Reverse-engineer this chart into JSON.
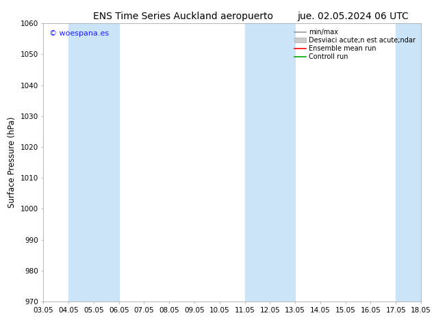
{
  "title_left": "ENS Time Series Auckland aeropuerto",
  "title_right": "jue. 02.05.2024 06 UTC",
  "ylabel": "Surface Pressure (hPa)",
  "ylim": [
    970,
    1060
  ],
  "yticks": [
    970,
    980,
    990,
    1000,
    1010,
    1020,
    1030,
    1040,
    1050,
    1060
  ],
  "x_start": 3.05,
  "x_end": 18.05,
  "xtick_labels": [
    "03.05",
    "04.05",
    "05.05",
    "06.05",
    "07.05",
    "08.05",
    "09.05",
    "10.05",
    "11.05",
    "12.05",
    "13.05",
    "14.05",
    "15.05",
    "16.05",
    "17.05",
    "18.05"
  ],
  "xtick_values": [
    3.05,
    4.05,
    5.05,
    6.05,
    7.05,
    8.05,
    9.05,
    10.05,
    11.05,
    12.05,
    13.05,
    14.05,
    15.05,
    16.05,
    17.05,
    18.05
  ],
  "shaded_bands": [
    {
      "x_start": 4.05,
      "x_end": 6.05
    },
    {
      "x_start": 11.05,
      "x_end": 13.05
    },
    {
      "x_start": 17.05,
      "x_end": 18.05
    }
  ],
  "shaded_color": "#cce4f7",
  "watermark_text": "© woespana.es",
  "watermark_color": "#1a1aff",
  "bg_color": "#ffffff",
  "plot_bg_color": "#ffffff",
  "title_fontsize": 10,
  "tick_fontsize": 7.5,
  "ylabel_fontsize": 8.5,
  "legend_labels": [
    "min/max",
    "Desviaci acute;n est acute;ndar",
    "Ensemble mean run",
    "Controll run"
  ],
  "legend_colors_line": [
    "#999999",
    null,
    "#ff0000",
    "#00aa00"
  ],
  "legend_patch_color": "#cccccc"
}
